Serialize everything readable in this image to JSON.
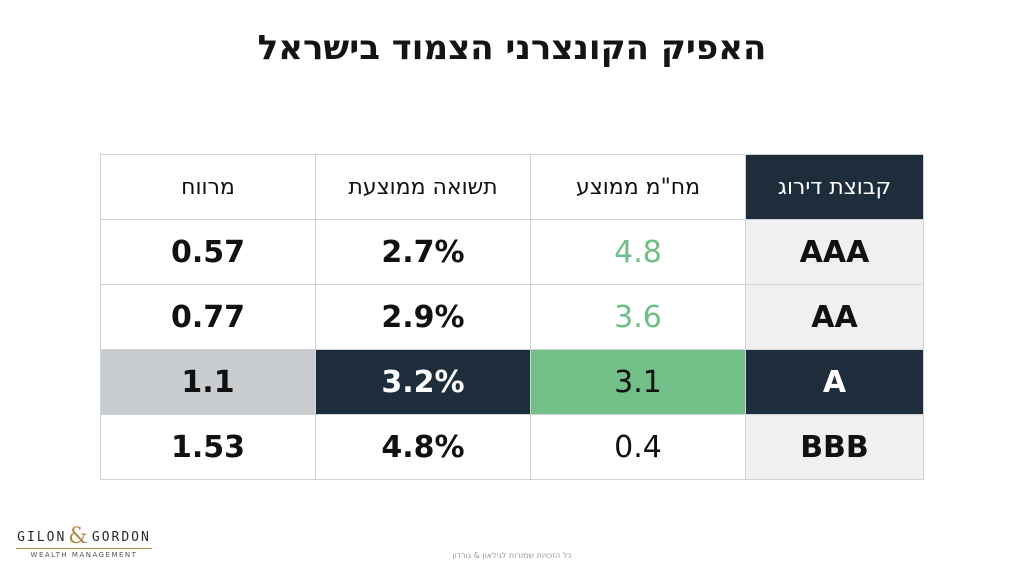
{
  "title": "האפיק הקונצרני הצמוד בישראל",
  "table": {
    "headers": {
      "rating": "קבוצת דירוג",
      "duration": "מח\"מ ממוצע",
      "yield": "תשואה ממוצעת",
      "spread": "מרווח"
    },
    "rows": [
      {
        "rating": "AAA",
        "duration": "4.8",
        "yield": "2.7%",
        "spread": "0.57"
      },
      {
        "rating": "AA",
        "duration": "3.6",
        "yield": "2.9%",
        "spread": "0.77"
      },
      {
        "rating": "A",
        "duration": "3.1",
        "yield": "3.2%",
        "spread": "1.1"
      },
      {
        "rating": "BBB",
        "duration": "0.4",
        "yield": "4.8%",
        "spread": "1.53"
      }
    ]
  },
  "colors": {
    "navy": "#1e2d3b",
    "green": "#72bf88",
    "green_text": "#6fbd87",
    "gray_highlight": "#c9cdd0",
    "rating_column_bg": "#f0f0f0"
  },
  "logo": {
    "left": "GILON",
    "amp": "&",
    "right": "GORDON",
    "sub": "WEALTH MANAGEMENT"
  },
  "footer": "כל הזכויות שמורות לגילאון & גורדון"
}
